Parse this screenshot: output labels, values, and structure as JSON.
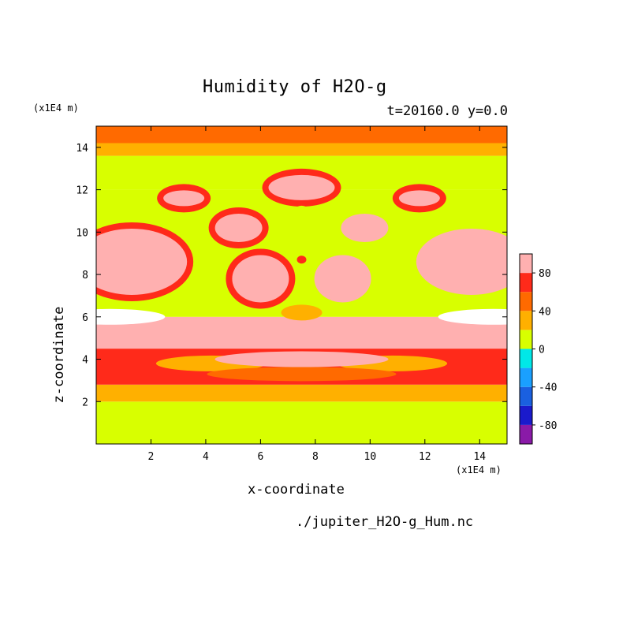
{
  "chart_data": {
    "type": "heatmap",
    "title": "Humidity of H2O-g",
    "subtitle": "t=20160.0 y=0.0",
    "xlabel": "x-coordinate",
    "ylabel": "z-coordinate",
    "x_unit": "(x1E4 m)",
    "y_unit": "(x1E4 m)",
    "xlim": [
      0,
      15
    ],
    "ylim": [
      0,
      15
    ],
    "x_ticks": [
      2,
      4,
      6,
      8,
      10,
      12,
      14
    ],
    "y_ticks": [
      2,
      4,
      6,
      8,
      10,
      12,
      14
    ],
    "colorbar": {
      "levels": [
        -100,
        -80,
        -60,
        -40,
        -20,
        0,
        20,
        40,
        60,
        80,
        100
      ],
      "tick_labels": [
        "80",
        "40",
        "0",
        "-40",
        "-80"
      ],
      "tick_values": [
        80,
        40,
        0,
        -40,
        -80
      ],
      "colors": [
        "#8a1aa8",
        "#1a1acc",
        "#1a60e0",
        "#1aa0ff",
        "#00e8e8",
        "#d8ff00",
        "#ffb000",
        "#ff6a00",
        "#ff2a1a",
        "#ffb0b0"
      ]
    },
    "regions": [
      {
        "z": [
          0,
          2.0
        ],
        "value": 10
      },
      {
        "z": [
          2.0,
          2.8
        ],
        "value": 30
      },
      {
        "z": [
          2.8,
          4.5
        ],
        "value": 70
      },
      {
        "z": [
          4.5,
          6.0
        ],
        "value": 90
      },
      {
        "z": [
          6.0,
          12.0
        ],
        "value": 10
      },
      {
        "z": [
          12.0,
          13.6
        ],
        "value": 10
      },
      {
        "z": [
          13.6,
          14.2
        ],
        "value": 30
      },
      {
        "z": [
          14.2,
          15.0
        ],
        "value": 50
      }
    ]
  },
  "source_file": "./jupiter_H2O-g_Hum.nc"
}
